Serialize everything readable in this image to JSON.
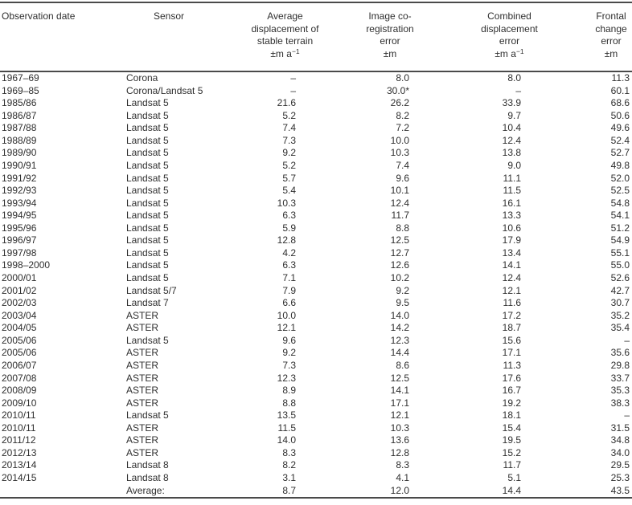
{
  "table": {
    "columns": [
      {
        "key": "date",
        "lines": [
          "Observation date"
        ],
        "unit_base": "",
        "unit_sup": ""
      },
      {
        "key": "sensor",
        "lines": [
          "Sensor"
        ],
        "unit_base": "",
        "unit_sup": ""
      },
      {
        "key": "avg",
        "lines": [
          "Average",
          "displacement of",
          "stable terrain"
        ],
        "unit_base": "±m a",
        "unit_sup": "−1"
      },
      {
        "key": "coreg",
        "lines": [
          "Image co-",
          "registration",
          "error"
        ],
        "unit_base": "±m",
        "unit_sup": ""
      },
      {
        "key": "combined",
        "lines": [
          "Combined",
          "displacement",
          "error"
        ],
        "unit_base": "±m a",
        "unit_sup": "−1"
      },
      {
        "key": "frontal",
        "lines": [
          "Frontal",
          "change",
          "error"
        ],
        "unit_base": "±m",
        "unit_sup": ""
      }
    ],
    "rows": [
      [
        "1967–69",
        "Corona",
        "–",
        "8.0",
        "8.0",
        "11.3"
      ],
      [
        "1969–85",
        "Corona/Landsat 5",
        "–",
        "30.0*",
        "–",
        "60.1"
      ],
      [
        "1985/86",
        "Landsat 5",
        "21.6",
        "26.2",
        "33.9",
        "68.6"
      ],
      [
        "1986/87",
        "Landsat 5",
        "5.2",
        "8.2",
        "9.7",
        "50.6"
      ],
      [
        "1987/88",
        "Landsat 5",
        "7.4",
        "7.2",
        "10.4",
        "49.6"
      ],
      [
        "1988/89",
        "Landsat 5",
        "7.3",
        "10.0",
        "12.4",
        "52.4"
      ],
      [
        "1989/90",
        "Landsat 5",
        "9.2",
        "10.3",
        "13.8",
        "52.7"
      ],
      [
        "1990/91",
        "Landsat 5",
        "5.2",
        "7.4",
        "9.0",
        "49.8"
      ],
      [
        "1991/92",
        "Landsat 5",
        "5.7",
        "9.6",
        "11.1",
        "52.0"
      ],
      [
        "1992/93",
        "Landsat 5",
        "5.4",
        "10.1",
        "11.5",
        "52.5"
      ],
      [
        "1993/94",
        "Landsat 5",
        "10.3",
        "12.4",
        "16.1",
        "54.8"
      ],
      [
        "1994/95",
        "Landsat 5",
        "6.3",
        "11.7",
        "13.3",
        "54.1"
      ],
      [
        "1995/96",
        "Landsat 5",
        "5.9",
        "8.8",
        "10.6",
        "51.2"
      ],
      [
        "1996/97",
        "Landsat 5",
        "12.8",
        "12.5",
        "17.9",
        "54.9"
      ],
      [
        "1997/98",
        "Landsat 5",
        "4.2",
        "12.7",
        "13.4",
        "55.1"
      ],
      [
        "1998–2000",
        "Landsat 5",
        "6.3",
        "12.6",
        "14.1",
        "55.0"
      ],
      [
        "2000/01",
        "Landsat 5",
        "7.1",
        "10.2",
        "12.4",
        "52.6"
      ],
      [
        "2001/02",
        "Landsat 5/7",
        "7.9",
        "9.2",
        "12.1",
        "42.7"
      ],
      [
        "2002/03",
        "Landsat 7",
        "6.6",
        "9.5",
        "11.6",
        "30.7"
      ],
      [
        "2003/04",
        "ASTER",
        "10.0",
        "14.0",
        "17.2",
        "35.2"
      ],
      [
        "2004/05",
        "ASTER",
        "12.1",
        "14.2",
        "18.7",
        "35.4"
      ],
      [
        "2005/06",
        "Landsat 5",
        "9.6",
        "12.3",
        "15.6",
        "–"
      ],
      [
        "2005/06",
        "ASTER",
        "9.2",
        "14.4",
        "17.1",
        "35.6"
      ],
      [
        "2006/07",
        "ASTER",
        "7.3",
        "8.6",
        "11.3",
        "29.8"
      ],
      [
        "2007/08",
        "ASTER",
        "12.3",
        "12.5",
        "17.6",
        "33.7"
      ],
      [
        "2008/09",
        "ASTER",
        "8.9",
        "14.1",
        "16.7",
        "35.3"
      ],
      [
        "2009/10",
        "ASTER",
        "8.8",
        "17.1",
        "19.2",
        "38.3"
      ],
      [
        "2010/11",
        "Landsat 5",
        "13.5",
        "12.1",
        "18.1",
        "–"
      ],
      [
        "2010/11",
        "ASTER",
        "11.5",
        "10.3",
        "15.4",
        "31.5"
      ],
      [
        "2011/12",
        "ASTER",
        "14.0",
        "13.6",
        "19.5",
        "34.8"
      ],
      [
        "2012/13",
        "ASTER",
        "8.3",
        "12.8",
        "15.2",
        "34.0"
      ],
      [
        "2013/14",
        "Landsat 8",
        "8.2",
        "8.3",
        "11.7",
        "29.5"
      ],
      [
        "2014/15",
        "Landsat 8",
        "3.1",
        "4.1",
        "5.1",
        "25.3"
      ],
      [
        "",
        "Average:",
        "8.7",
        "12.0",
        "14.4",
        "43.5"
      ]
    ]
  }
}
